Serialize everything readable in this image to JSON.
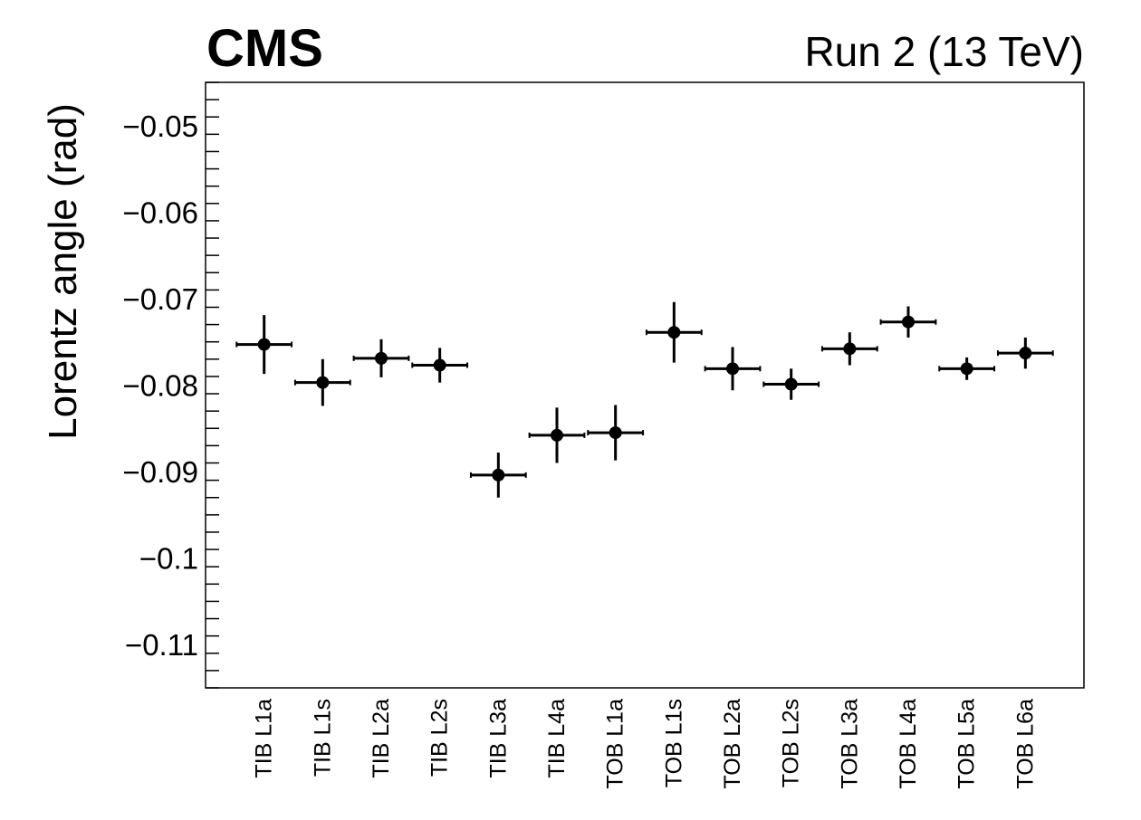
{
  "header": {
    "experiment": "CMS",
    "run_info": "Run 2 (13 TeV)"
  },
  "chart_data": {
    "type": "scatter",
    "title": "",
    "xlabel": "",
    "ylabel": "Lorentz angle (rad)",
    "ylim": [
      -0.115,
      -0.045
    ],
    "yticks": [
      -0.05,
      -0.06,
      -0.07,
      -0.08,
      -0.09,
      -0.1,
      -0.11
    ],
    "ytick_labels": [
      "−0.05",
      "−0.06",
      "−0.07",
      "−0.08",
      "−0.09",
      "−0.1",
      "−0.11"
    ],
    "grid": false,
    "categories": [
      "TIB  L1a",
      "TIB  L1s",
      "TIB  L2a",
      "TIB  L2s",
      "TIB  L3a",
      "TIB  L4a",
      "TOB  L1a",
      "TOB  L1s",
      "TOB  L2a",
      "TOB  L2s",
      "TOB  L3a",
      "TOB  L4a",
      "TOB  L5a",
      "TOB  L6a"
    ],
    "series": [
      {
        "values": [
          -0.0753,
          -0.0797,
          -0.0769,
          -0.0777,
          -0.0904,
          -0.0858,
          -0.0855,
          -0.0739,
          -0.0781,
          -0.0799,
          -0.0758,
          -0.0727,
          -0.0781,
          -0.0763
        ],
        "yerr": [
          0.0034,
          0.0027,
          0.0022,
          0.002,
          0.0026,
          0.0032,
          0.0032,
          0.0035,
          0.0025,
          0.0018,
          0.0019,
          0.0018,
          0.0013,
          0.0018
        ],
        "color": "#000000"
      }
    ]
  }
}
